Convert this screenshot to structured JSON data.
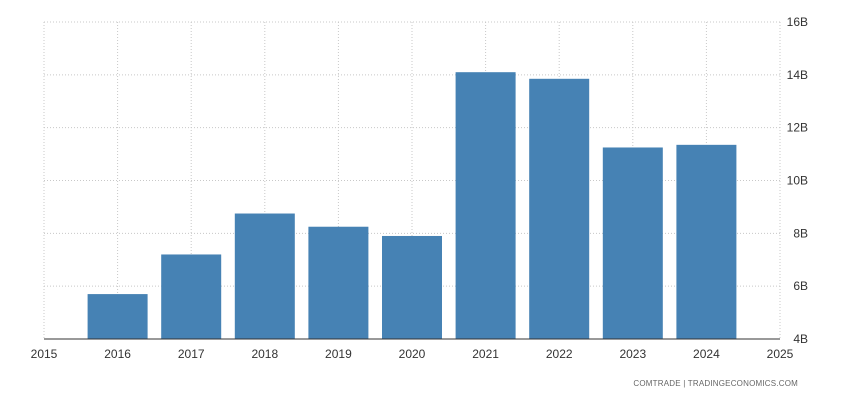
{
  "chart_data": {
    "type": "bar",
    "x": [
      "2016",
      "2017",
      "2018",
      "2019",
      "2020",
      "2021",
      "2022",
      "2023",
      "2024"
    ],
    "values": [
      5.7,
      7.2,
      8.75,
      8.25,
      7.9,
      14.1,
      13.85,
      11.25,
      11.35
    ],
    "unit": "B",
    "xlim": [
      2015,
      2025
    ],
    "xticks": [
      "2015",
      "2016",
      "2017",
      "2018",
      "2019",
      "2020",
      "2021",
      "2022",
      "2023",
      "2024",
      "2025"
    ],
    "ylim": [
      4,
      16
    ],
    "yticks": [
      "4B",
      "6B",
      "8B",
      "10B",
      "12B",
      "14B",
      "16B"
    ],
    "y_axis_side": "right",
    "grid": true,
    "bar_color": "#4682b4",
    "title": "",
    "xlabel": "",
    "ylabel": ""
  },
  "footer": {
    "source": "COMTRADE | TRADINGECONOMICS.COM"
  }
}
